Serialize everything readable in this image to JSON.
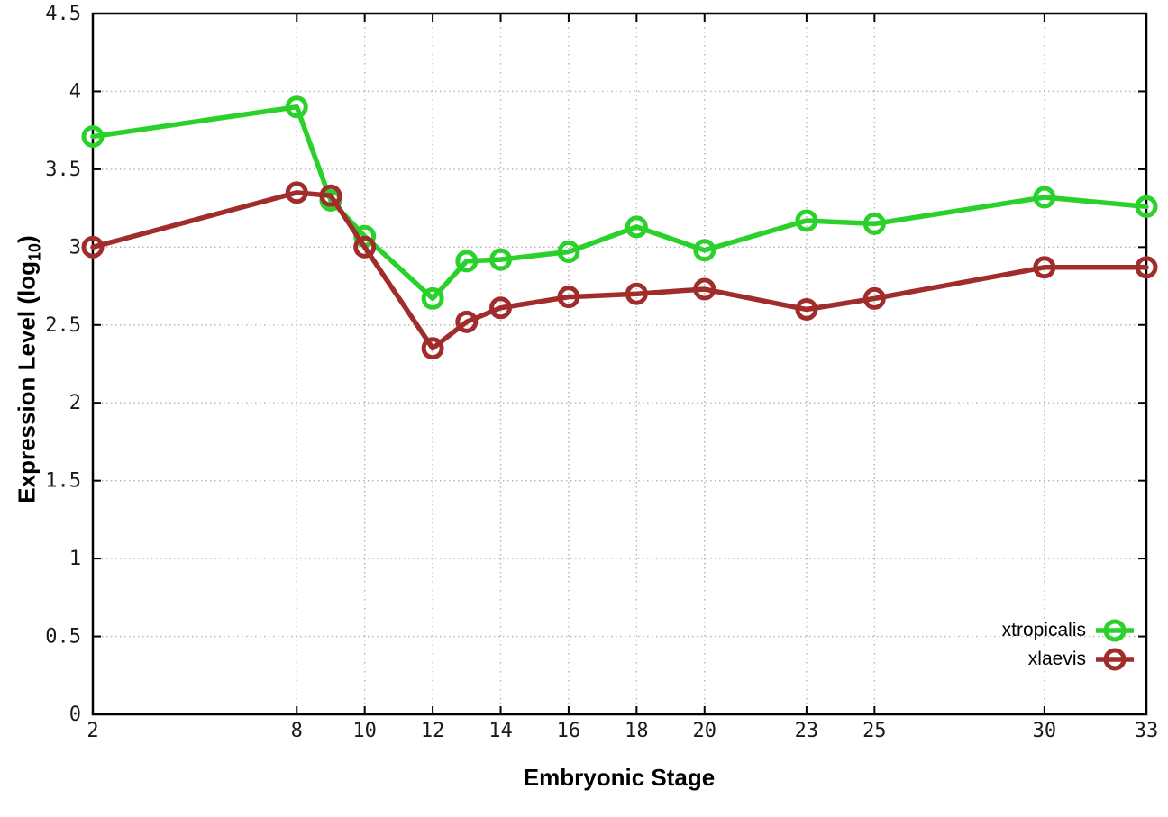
{
  "chart_data": {
    "type": "line",
    "title": "",
    "xlabel": "Embryonic Stage",
    "ylabel": {
      "prefix": "Expression Level (log",
      "subscript": "10",
      "suffix": ")"
    },
    "xlim": [
      2,
      33
    ],
    "ylim": [
      0,
      4.5
    ],
    "grid": true,
    "grid_style": "dotted",
    "legend_position": "bottom-right-inside",
    "x": [
      2,
      8,
      9,
      10,
      12,
      13,
      14,
      16,
      18,
      20,
      23,
      25,
      30,
      33
    ],
    "x_ticks": [
      2,
      8,
      10,
      12,
      14,
      16,
      18,
      20,
      23,
      25,
      30,
      33
    ],
    "x_tick_labels": [
      "2",
      "8",
      "10",
      "12",
      "14",
      "16",
      "18",
      "20",
      "23",
      "25",
      "30",
      "33"
    ],
    "y_ticks": [
      0,
      0.5,
      1,
      1.5,
      2,
      2.5,
      3,
      3.5,
      4,
      4.5
    ],
    "y_tick_labels": [
      "0",
      "0.5",
      "1",
      "1.5",
      "2",
      "2.5",
      "3",
      "3.5",
      "4",
      "4.5"
    ],
    "series": [
      {
        "name": "xtropicalis",
        "color": "#2bd12b",
        "marker": "open-circle",
        "values": [
          3.71,
          3.9,
          3.3,
          3.07,
          2.67,
          2.91,
          2.92,
          2.97,
          3.13,
          2.98,
          3.17,
          3.15,
          3.32,
          3.26
        ]
      },
      {
        "name": "xlaevis",
        "color": "#a02c2c",
        "marker": "open-circle",
        "values": [
          3.0,
          3.35,
          3.33,
          3.0,
          2.35,
          2.52,
          2.61,
          2.68,
          2.7,
          2.73,
          2.6,
          2.67,
          2.87,
          2.87
        ]
      }
    ],
    "colors": {
      "background": "#ffffff",
      "axis": "#000000",
      "grid": "#b3b3b3",
      "tick_text": "#1a1a1a"
    }
  }
}
